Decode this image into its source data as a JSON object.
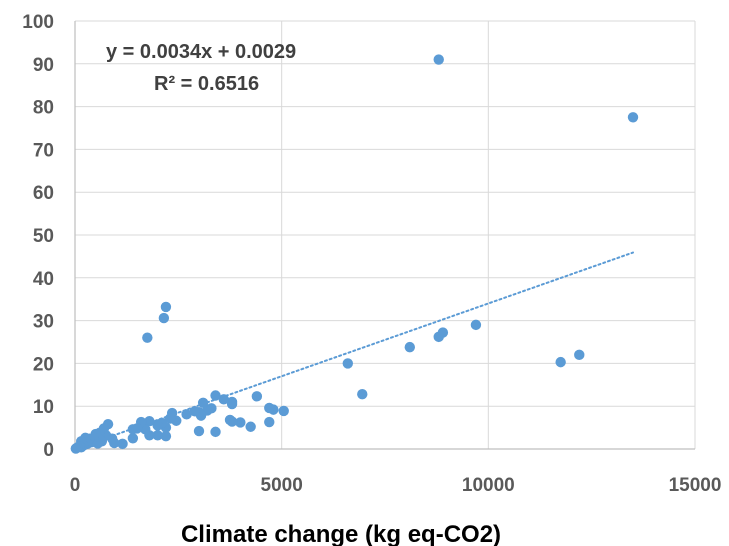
{
  "chart_data": {
    "type": "scatter",
    "xlabel": "Climate change (kg eq-CO2)",
    "ylabel": "",
    "xlim": [
      0,
      15000
    ],
    "ylim": [
      0,
      100
    ],
    "xticks": [
      0,
      5000,
      10000,
      15000
    ],
    "yticks": [
      0,
      10,
      20,
      30,
      40,
      50,
      60,
      70,
      80,
      90,
      100
    ],
    "grid": true,
    "series": [
      {
        "color": "#5b9bd5",
        "points": [
          [
            13500,
            77.5
          ],
          [
            8800,
            91
          ],
          [
            12200,
            22
          ],
          [
            11750,
            20.3
          ],
          [
            9700,
            29
          ],
          [
            8900,
            27.2
          ],
          [
            8800,
            26.2
          ],
          [
            8100,
            23.8
          ],
          [
            6600,
            20
          ],
          [
            6950,
            12.8
          ],
          [
            5050,
            8.9
          ],
          [
            4800,
            9.2
          ],
          [
            4700,
            9.6
          ],
          [
            4700,
            6.3
          ],
          [
            4400,
            12.3
          ],
          [
            4250,
            5.2
          ],
          [
            4000,
            6.2
          ],
          [
            3800,
            11
          ],
          [
            3800,
            10.5
          ],
          [
            3800,
            6.4
          ],
          [
            3750,
            6.8
          ],
          [
            3600,
            11.6
          ],
          [
            3400,
            12.5
          ],
          [
            3400,
            4
          ],
          [
            3300,
            9.5
          ],
          [
            3200,
            9
          ],
          [
            3100,
            10.8
          ],
          [
            3050,
            7.8
          ],
          [
            3000,
            8.6
          ],
          [
            3000,
            4.2
          ],
          [
            2900,
            8.8
          ],
          [
            2700,
            8.1
          ],
          [
            2450,
            6.6
          ],
          [
            2350,
            8.4
          ],
          [
            2300,
            7.1
          ],
          [
            2200,
            33.2
          ],
          [
            2150,
            30.6
          ],
          [
            2200,
            5
          ],
          [
            2100,
            6.1
          ],
          [
            2000,
            5.5
          ],
          [
            2200,
            3
          ],
          [
            2000,
            3.2
          ],
          [
            1750,
            26
          ],
          [
            1800,
            6.5
          ],
          [
            1800,
            3.2
          ],
          [
            1700,
            4.6
          ],
          [
            1600,
            6.3
          ],
          [
            1500,
            4.8
          ],
          [
            1400,
            4.6
          ],
          [
            1400,
            2.5
          ],
          [
            1150,
            1.2
          ],
          [
            950,
            1.4
          ],
          [
            900,
            2.4
          ],
          [
            800,
            5.8
          ],
          [
            750,
            3.2
          ],
          [
            700,
            4.8
          ],
          [
            650,
            1.8
          ],
          [
            600,
            3.8
          ],
          [
            600,
            2.2
          ],
          [
            550,
            1.3
          ],
          [
            500,
            3.5
          ],
          [
            450,
            2.6
          ],
          [
            400,
            1.6
          ],
          [
            350,
            2.4
          ],
          [
            300,
            1.2
          ],
          [
            250,
            2.6
          ],
          [
            200,
            0.8
          ],
          [
            150,
            1.8
          ],
          [
            150,
            0.4
          ],
          [
            100,
            0.6
          ],
          [
            50,
            0.3
          ],
          [
            20,
            0.1
          ]
        ]
      }
    ],
    "trendline": {
      "type": "linear",
      "style": "dotted",
      "color": "#5b9bd5",
      "slope": 0.0034,
      "intercept": 0.0029,
      "x_range": [
        0,
        13500
      ],
      "equation_text": "y = 0.0034x + 0.0029",
      "r2_text": "R² = 0.6516"
    }
  }
}
